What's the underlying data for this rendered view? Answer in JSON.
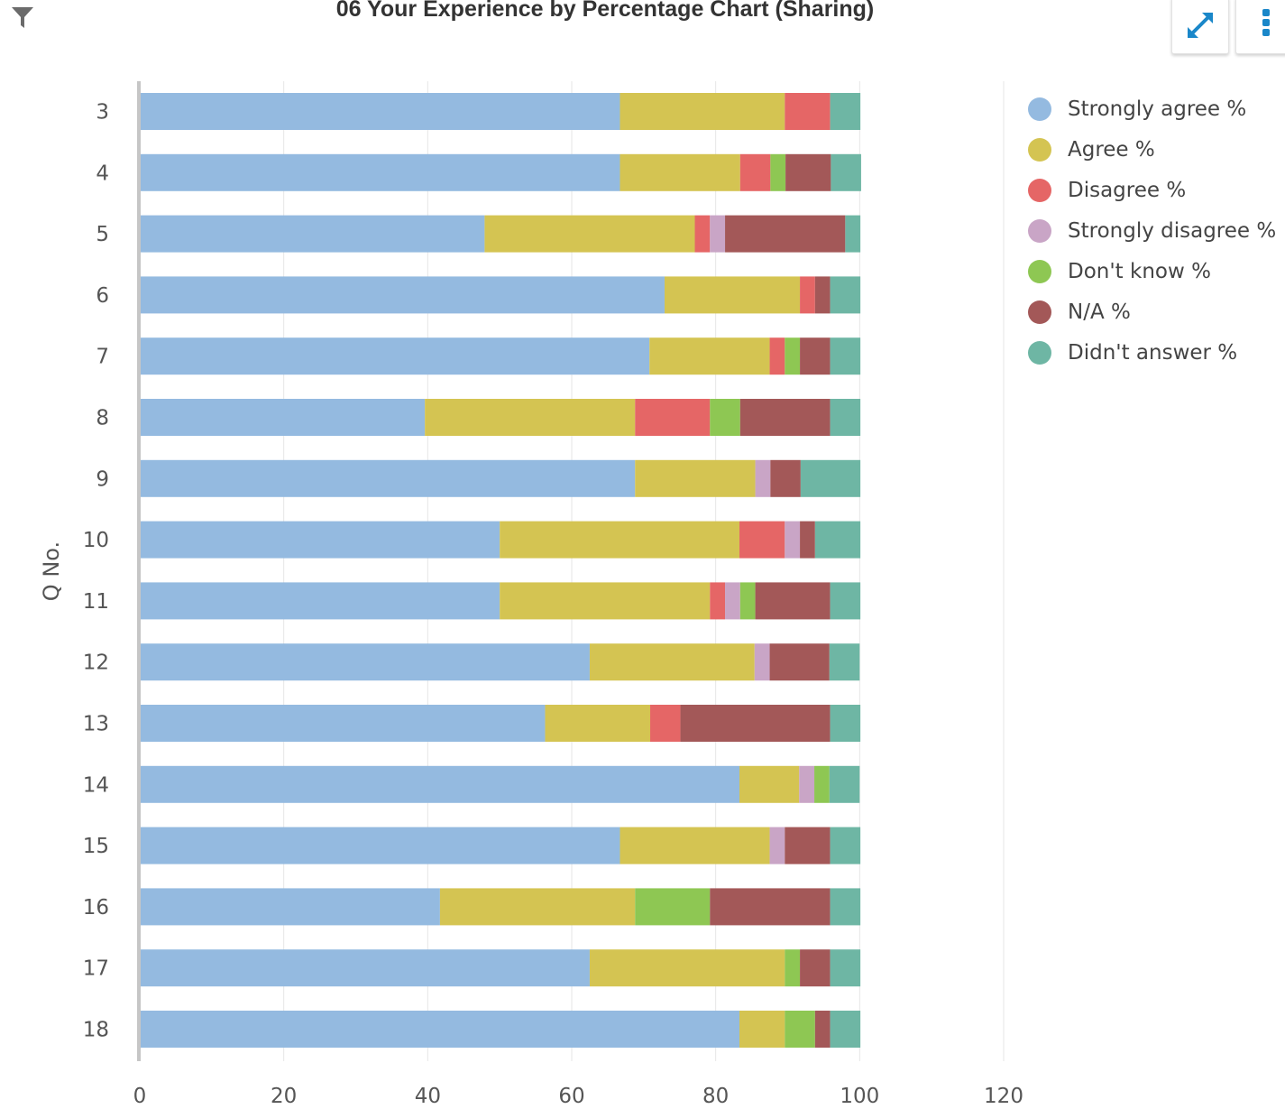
{
  "header": {
    "title": "06 Your Experience by Percentage Chart (Sharing)",
    "filter_icon": "filter-icon",
    "expand_icon": "expand-arrows-icon",
    "menu_icon": "kebab-menu-icon",
    "accent_color": "#1a87c9"
  },
  "chart_data": {
    "type": "bar",
    "orientation": "horizontal",
    "stacked": true,
    "ylabel": "Q No.",
    "xlabel": "",
    "xlim": [
      0,
      120
    ],
    "xticks": [
      "0",
      "20",
      "40",
      "60",
      "80",
      "100",
      "120"
    ],
    "grid": true,
    "legend_position": "right",
    "categories": [
      "3",
      "4",
      "5",
      "6",
      "7",
      "8",
      "9",
      "10",
      "11",
      "12",
      "13",
      "14",
      "15",
      "16",
      "17",
      "18"
    ],
    "series": [
      {
        "name": "Strongly agree %",
        "color": "#94bae0",
        "values": [
          66.7,
          66.7,
          47.9,
          72.9,
          70.8,
          39.6,
          68.8,
          50.0,
          50.0,
          62.5,
          56.3,
          83.3,
          66.7,
          41.7,
          62.5,
          83.3
        ]
      },
      {
        "name": "Agree %",
        "color": "#d4c452",
        "values": [
          22.9,
          16.7,
          29.2,
          18.8,
          16.7,
          29.2,
          16.7,
          33.3,
          29.2,
          22.9,
          14.6,
          8.3,
          20.8,
          27.1,
          27.1,
          6.3
        ]
      },
      {
        "name": "Disagree %",
        "color": "#e56666",
        "values": [
          6.3,
          4.2,
          2.1,
          2.1,
          2.1,
          10.4,
          0,
          6.3,
          2.1,
          0,
          4.2,
          0,
          0,
          0,
          0,
          0
        ]
      },
      {
        "name": "Strongly disagree %",
        "color": "#c9a5c6",
        "values": [
          0,
          0,
          2.1,
          0,
          0,
          0,
          2.1,
          2.1,
          2.1,
          2.1,
          0,
          2.1,
          2.1,
          0,
          0,
          0
        ]
      },
      {
        "name": "Don't know %",
        "color": "#8ec753",
        "values": [
          0,
          2.1,
          0,
          0,
          2.1,
          4.2,
          0,
          0,
          2.1,
          0,
          0,
          2.1,
          0,
          10.4,
          2.1,
          4.2
        ]
      },
      {
        "name": "N/A %",
        "color": "#a35858",
        "values": [
          0,
          6.3,
          16.7,
          2.1,
          4.2,
          12.5,
          4.2,
          2.1,
          10.4,
          8.3,
          20.8,
          0,
          6.3,
          16.7,
          4.2,
          2.1
        ]
      },
      {
        "name": "Didn't answer %",
        "color": "#6eb6a4",
        "values": [
          4.2,
          4.2,
          2.1,
          4.2,
          4.2,
          4.2,
          8.3,
          6.3,
          4.2,
          4.2,
          4.2,
          4.2,
          4.2,
          4.2,
          4.2,
          4.2
        ]
      }
    ]
  }
}
